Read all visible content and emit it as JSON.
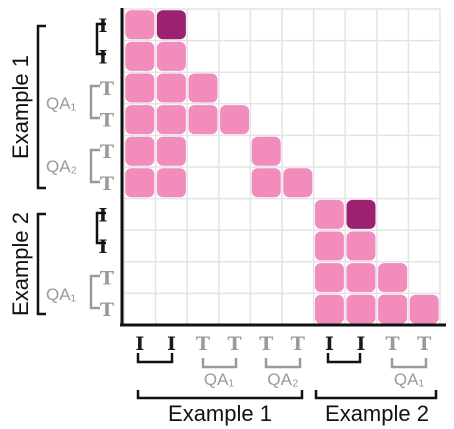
{
  "matrix": {
    "rows": [
      "I",
      "I",
      "T",
      "T",
      "T",
      "T",
      "I",
      "I",
      "T",
      "T"
    ],
    "cols": [
      "I",
      "I",
      "T",
      "T",
      "T",
      "T",
      "I",
      "I",
      "T",
      "T"
    ],
    "token_kinds": [
      "image",
      "image",
      "text",
      "text",
      "text",
      "text",
      "image",
      "image",
      "text",
      "text"
    ],
    "cells": [
      [
        1,
        2,
        0,
        0,
        0,
        0,
        0,
        0,
        0,
        0
      ],
      [
        1,
        1,
        0,
        0,
        0,
        0,
        0,
        0,
        0,
        0
      ],
      [
        1,
        1,
        1,
        0,
        0,
        0,
        0,
        0,
        0,
        0
      ],
      [
        1,
        1,
        1,
        1,
        0,
        0,
        0,
        0,
        0,
        0
      ],
      [
        1,
        1,
        0,
        0,
        1,
        0,
        0,
        0,
        0,
        0
      ],
      [
        1,
        1,
        0,
        0,
        1,
        1,
        0,
        0,
        0,
        0
      ],
      [
        0,
        0,
        0,
        0,
        0,
        0,
        1,
        2,
        0,
        0
      ],
      [
        0,
        0,
        0,
        0,
        0,
        0,
        1,
        1,
        0,
        0
      ],
      [
        0,
        0,
        0,
        0,
        0,
        0,
        1,
        1,
        1,
        0
      ],
      [
        0,
        0,
        0,
        0,
        0,
        0,
        1,
        1,
        1,
        1
      ]
    ],
    "colors": {
      "attend": "#f18cbc",
      "highlight": "#9b2271",
      "grid": "#e4e4e4",
      "axis": "#111111",
      "image_token": "#1a1a1a",
      "text_token": "#9a9a9a"
    }
  },
  "labels": {
    "example1": "Example 1",
    "example2": "Example 2",
    "qa1": "QA₁",
    "qa2": "QA₂"
  }
}
